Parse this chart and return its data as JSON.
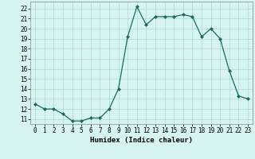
{
  "x": [
    0,
    1,
    2,
    3,
    4,
    5,
    6,
    7,
    8,
    9,
    10,
    11,
    12,
    13,
    14,
    15,
    16,
    17,
    18,
    19,
    20,
    21,
    22,
    23
  ],
  "y": [
    12.5,
    12.0,
    12.0,
    11.5,
    10.8,
    10.8,
    11.1,
    11.1,
    12.0,
    14.0,
    19.2,
    22.2,
    20.4,
    21.2,
    21.2,
    21.2,
    21.4,
    21.2,
    19.2,
    20.0,
    19.0,
    15.8,
    13.3,
    13.0
  ],
  "xlabel": "Humidex (Indice chaleur)",
  "line_color": "#1a6b5a",
  "marker": "D",
  "marker_size": 2.0,
  "bg_color": "#d6f5f0",
  "grid_color": "#b0d8d2",
  "ylim": [
    10.5,
    22.7
  ],
  "xlim": [
    -0.5,
    23.5
  ],
  "yticks": [
    11,
    12,
    13,
    14,
    15,
    16,
    17,
    18,
    19,
    20,
    21,
    22
  ],
  "xticks": [
    0,
    1,
    2,
    3,
    4,
    5,
    6,
    7,
    8,
    9,
    10,
    11,
    12,
    13,
    14,
    15,
    16,
    17,
    18,
    19,
    20,
    21,
    22,
    23
  ],
  "tick_fontsize": 5.5,
  "xlabel_fontsize": 6.5
}
